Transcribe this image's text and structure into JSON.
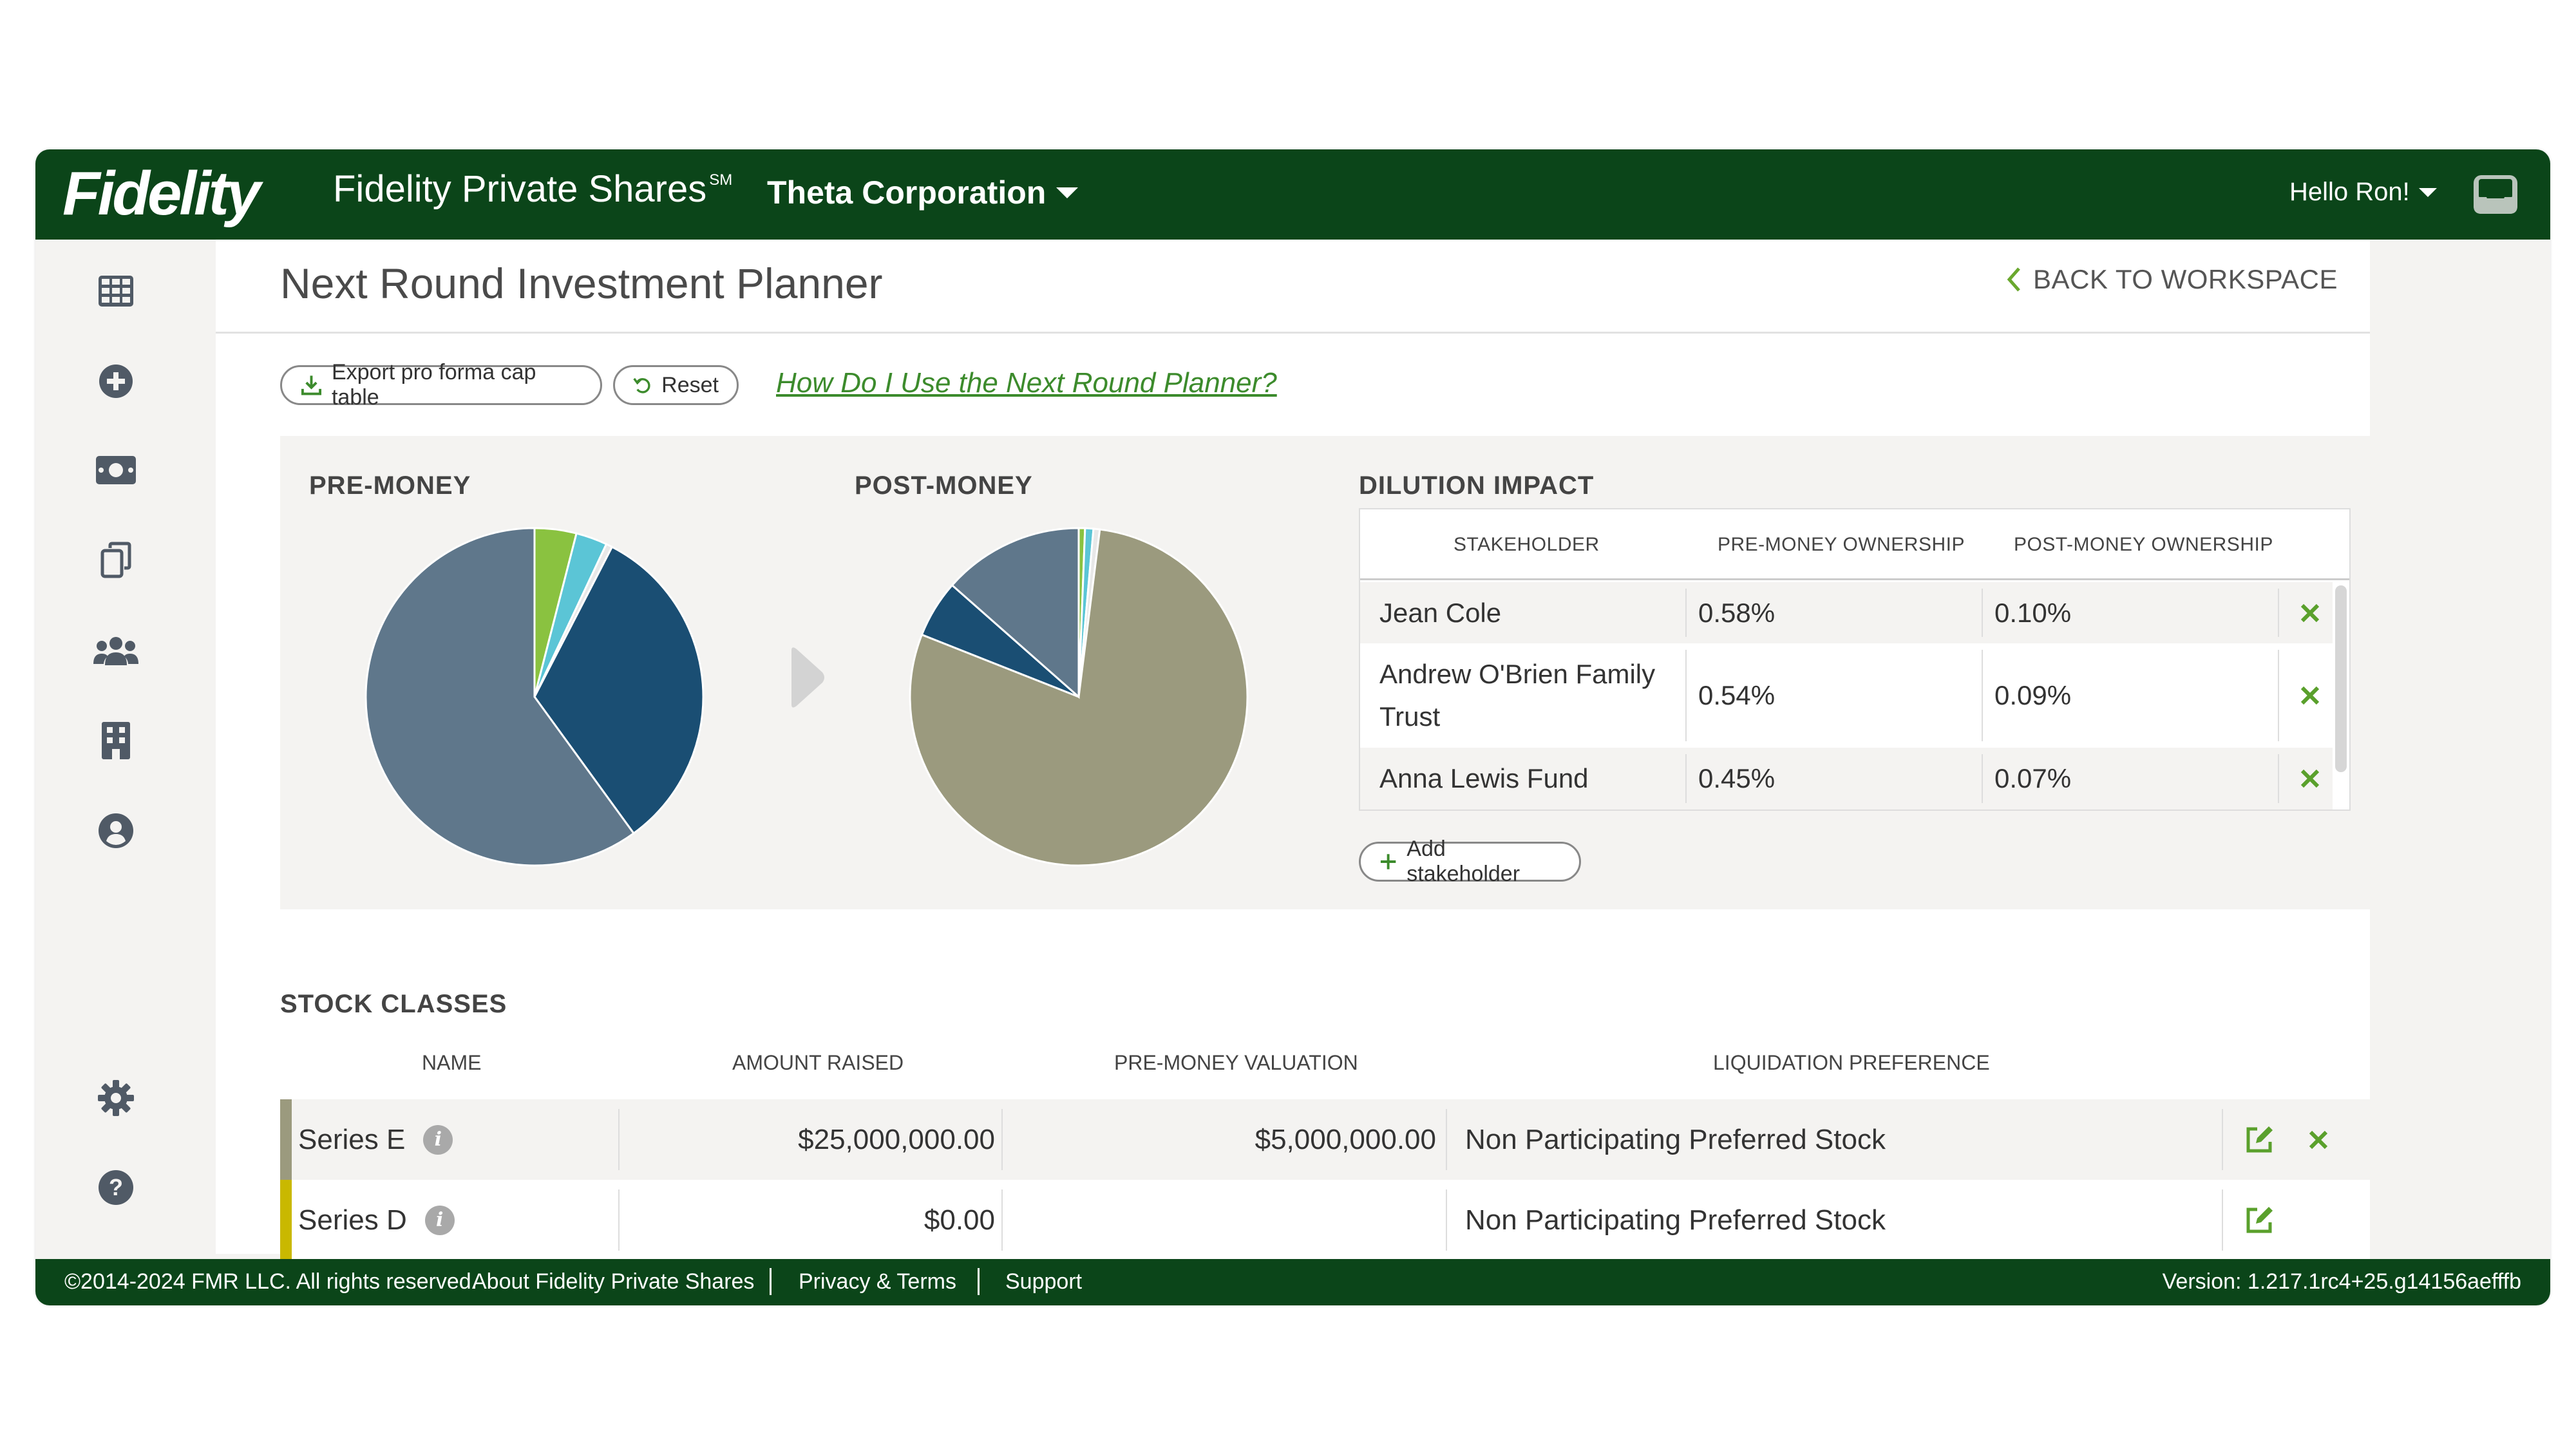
{
  "header": {
    "logo": "Fidelity",
    "product": "Fidelity Private Shares",
    "product_mark": "SM",
    "company": "Theta Corporation",
    "greeting": "Hello Ron!"
  },
  "sidebar": {
    "icons": [
      "grid-icon",
      "plus-circle-icon",
      "money-icon",
      "copy-icon",
      "users-icon",
      "building-icon",
      "user-circle-icon",
      "gear-icon",
      "help-icon"
    ]
  },
  "page": {
    "title": "Next Round Investment Planner",
    "back": "BACK TO WORKSPACE"
  },
  "toolbar": {
    "export_label": "Export pro forma cap table",
    "reset_label": "Reset",
    "help_link": "How Do I Use the Next Round Planner?"
  },
  "charts": {
    "pre_label": "PRE-MONEY",
    "post_label": "POST-MONEY"
  },
  "chart_data": [
    {
      "type": "pie",
      "title": "PRE-MONEY",
      "values": [
        4,
        3,
        0.6,
        32.4,
        60
      ],
      "colors": [
        "#8ac240",
        "#5bc5d6",
        "#e8e8e8",
        "#1a4e73",
        "#5f778b"
      ]
    },
    {
      "type": "pie",
      "title": "POST-MONEY",
      "values": [
        0.6,
        0.8,
        0.6,
        79,
        5.5,
        13.5
      ],
      "colors": [
        "#8ac240",
        "#5bc5d6",
        "#e8e8e8",
        "#9b9a7e",
        "#1a4e73",
        "#5f778b"
      ]
    }
  ],
  "dilution": {
    "title": "DILUTION IMPACT",
    "headers": [
      "STAKEHOLDER",
      "PRE-MONEY OWNERSHIP",
      "POST-MONEY OWNERSHIP"
    ],
    "rows": [
      {
        "name": "Jean Cole",
        "pre": "0.58%",
        "post": "0.10%"
      },
      {
        "name_line1": "Andrew O'Brien Family",
        "name_line2": "Trust",
        "pre": "0.54%",
        "post": "0.09%"
      },
      {
        "name": "Anna Lewis Fund",
        "pre": "0.45%",
        "post": "0.07%"
      }
    ],
    "add_label": "Add stakeholder"
  },
  "stock": {
    "title": "STOCK CLASSES",
    "headers": [
      "NAME",
      "AMOUNT RAISED",
      "PRE-MONEY VALUATION",
      "LIQUIDATION PREFERENCE"
    ],
    "rows": [
      {
        "name": "Series E",
        "amount": "$25,000,000.00",
        "valuation": "$5,000,000.00",
        "preference": "Non Participating Preferred Stock",
        "color": "#9b9a7e"
      },
      {
        "name": "Series D",
        "amount": "$0.00",
        "valuation": "",
        "preference": "Non Participating Preferred Stock",
        "color": "#c9b800"
      }
    ]
  },
  "footer": {
    "copyright": "©2014-2024 FMR LLC. All rights reserved.",
    "about": "About Fidelity Private Shares",
    "privacy": "Privacy & Terms",
    "support": "Support",
    "version": "Version: 1.217.1rc4+25.g14156aefffb"
  }
}
